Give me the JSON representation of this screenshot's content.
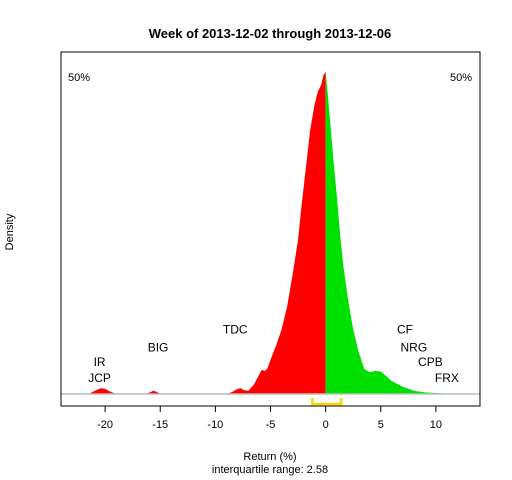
{
  "chart_data": {
    "type": "area",
    "title": "Week of 2013-12-02 through 2013-12-06",
    "xlabel": "Return (%)",
    "subtitle": "interquartile range: 2.58",
    "ylabel": "Density",
    "xlim": [
      -24,
      14
    ],
    "ylim": [
      0,
      1
    ],
    "xticks": [
      -20,
      -15,
      -10,
      -5,
      0,
      5,
      10
    ],
    "pct_left": "50%",
    "pct_right": "50%",
    "colors": {
      "left": "#ff0000",
      "right": "#00e000",
      "iqr": "#ffd700",
      "baseline": "#bebebe",
      "pct_left": "#ff0000",
      "pct_right": "#00a000"
    },
    "iqr": [
      -1.2,
      1.4
    ],
    "density": {
      "x": [
        -21.5,
        -20.8,
        -20.4,
        -20,
        -19.6,
        -19,
        -18,
        -16.3,
        -15.6,
        -14.9,
        -14,
        -9,
        -8.5,
        -8,
        -7.7,
        -7.4,
        -7,
        -6.5,
        -6.1,
        -5.8,
        -5.5,
        -5.3,
        -4.9,
        -4.5,
        -4,
        -3.5,
        -3,
        -2.5,
        -2.2,
        -1.8,
        -1.4,
        -1,
        -0.7,
        -0.4,
        -0.2,
        0,
        0.2,
        0.4,
        0.7,
        1,
        1.3,
        1.6,
        2,
        2.5,
        3,
        3.5,
        4,
        4.5,
        5,
        5.5,
        6,
        7,
        8,
        9,
        10,
        11,
        12
      ],
      "y": [
        0,
        0.012,
        0.018,
        0.016,
        0.008,
        0,
        0,
        0,
        0.01,
        0,
        0,
        0,
        0.006,
        0.016,
        0.018,
        0.012,
        0.01,
        0.03,
        0.055,
        0.075,
        0.072,
        0.078,
        0.115,
        0.15,
        0.2,
        0.27,
        0.37,
        0.48,
        0.58,
        0.7,
        0.82,
        0.9,
        0.94,
        0.96,
        0.99,
        1,
        0.93,
        0.85,
        0.73,
        0.62,
        0.5,
        0.4,
        0.3,
        0.2,
        0.13,
        0.078,
        0.068,
        0.072,
        0.07,
        0.055,
        0.04,
        0.022,
        0.01,
        0.005,
        0.003,
        0.001,
        0
      ],
      "split": 0
    },
    "annotations": [
      {
        "label": "IR",
        "x": -20.5,
        "y": 0.1
      },
      {
        "label": "JCP",
        "x": -20.5,
        "y": 0.05
      },
      {
        "label": "BIG",
        "x": -15.2,
        "y": 0.145
      },
      {
        "label": "TDC",
        "x": -8.2,
        "y": 0.2
      },
      {
        "label": "CF",
        "x": 7.2,
        "y": 0.2
      },
      {
        "label": "NRG",
        "x": 8,
        "y": 0.145
      },
      {
        "label": "CPB",
        "x": 9.5,
        "y": 0.1
      },
      {
        "label": "FRX",
        "x": 11,
        "y": 0.05
      }
    ]
  }
}
